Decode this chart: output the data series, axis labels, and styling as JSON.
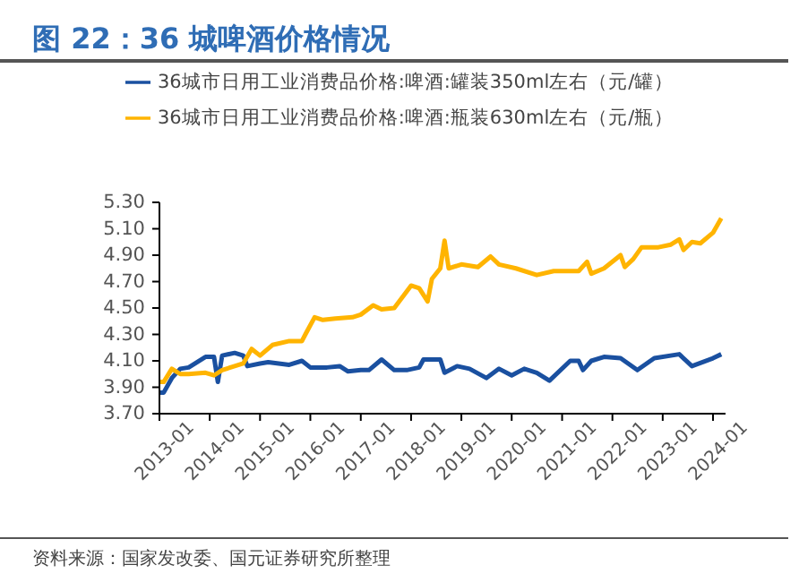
{
  "chart_data": {
    "type": "line",
    "title": "图 22：36 城啤酒价格情况",
    "annotations": [
      "资料来源：国家发改委、国元证券研究所整理"
    ],
    "legend": "top",
    "grid": false,
    "marker": "none",
    "line_style": "solid",
    "xlim": [
      "2013-01",
      "2024-04"
    ],
    "xticks": [
      "2013-01",
      "2014-01",
      "2015-01",
      "2016-01",
      "2017-01",
      "2018-01",
      "2019-01",
      "2020-01",
      "2021-01",
      "2022-01",
      "2023-01",
      "2024-01"
    ],
    "ylim": [
      3.7,
      5.3
    ],
    "yticks": [
      {
        "value": 3.7,
        "label": "3.70"
      },
      {
        "value": 3.9,
        "label": "3.90"
      },
      {
        "value": 4.1,
        "label": "4.10"
      },
      {
        "value": 4.3,
        "label": "4.30"
      },
      {
        "value": 4.5,
        "label": "4.50"
      },
      {
        "value": 4.7,
        "label": "4.70"
      },
      {
        "value": 4.9,
        "label": "4.90"
      },
      {
        "value": 5.1,
        "label": "5.10"
      },
      {
        "value": 5.3,
        "label": "5.30"
      }
    ],
    "series": [
      {
        "name": "36城市日用工业消费品价格:啤酒:罐装350ml左右（元/罐）",
        "color": "#1a50a0",
        "x": [
          "2013-01",
          "2013-02",
          "2013-04",
          "2013-06",
          "2013-08",
          "2013-12",
          "2014-02",
          "2014-03",
          "2014-04",
          "2014-07",
          "2014-09",
          "2014-10",
          "2015-01",
          "2015-03",
          "2015-08",
          "2015-11",
          "2016-01",
          "2016-05",
          "2016-08",
          "2016-10",
          "2017-01",
          "2017-03",
          "2017-06",
          "2017-09",
          "2017-12",
          "2018-03",
          "2018-04",
          "2018-08",
          "2018-09",
          "2018-12",
          "2019-03",
          "2019-07",
          "2019-10",
          "2020-01",
          "2020-04",
          "2020-07",
          "2020-10",
          "2021-03",
          "2021-05",
          "2021-06",
          "2021-08",
          "2021-11",
          "2022-03",
          "2022-07",
          "2022-11",
          "2023-05",
          "2023-08",
          "2024-01",
          "2024-03"
        ],
        "values": [
          3.86,
          3.86,
          3.97,
          4.04,
          4.05,
          4.13,
          4.13,
          3.94,
          4.14,
          4.16,
          4.14,
          4.06,
          4.08,
          4.09,
          4.07,
          4.1,
          4.05,
          4.05,
          4.06,
          4.02,
          4.03,
          4.03,
          4.11,
          4.03,
          4.03,
          4.05,
          4.11,
          4.11,
          4.01,
          4.06,
          4.04,
          3.97,
          4.04,
          3.99,
          4.04,
          4.01,
          3.95,
          4.1,
          4.1,
          4.03,
          4.1,
          4.13,
          4.12,
          4.03,
          4.12,
          4.15,
          4.06,
          4.12,
          4.15
        ]
      },
      {
        "name": "36城市日用工业消费品价格:啤酒:瓶装630ml左右（元/瓶）",
        "color": "#ffb400",
        "x": [
          "2013-01",
          "2013-02",
          "2013-04",
          "2013-06",
          "2013-08",
          "2013-12",
          "2014-02",
          "2014-04",
          "2014-07",
          "2014-09",
          "2014-11",
          "2015-01",
          "2015-04",
          "2015-08",
          "2015-11",
          "2015-12",
          "2016-02",
          "2016-04",
          "2016-07",
          "2016-11",
          "2017-01",
          "2017-04",
          "2017-06",
          "2017-09",
          "2018-01",
          "2018-03",
          "2018-05",
          "2018-06",
          "2018-08",
          "2018-09",
          "2018-10",
          "2019-01",
          "2019-05",
          "2019-08",
          "2019-10",
          "2020-02",
          "2020-07",
          "2020-11",
          "2021-05",
          "2021-07",
          "2021-08",
          "2021-11",
          "2022-03",
          "2022-04",
          "2022-06",
          "2022-08",
          "2022-12",
          "2023-03",
          "2023-05",
          "2023-06",
          "2023-08",
          "2023-10",
          "2024-01",
          "2024-03"
        ],
        "values": [
          3.94,
          3.94,
          4.04,
          4.0,
          4.0,
          4.01,
          3.99,
          4.03,
          4.06,
          4.08,
          4.19,
          4.14,
          4.22,
          4.25,
          4.25,
          4.31,
          4.43,
          4.41,
          4.42,
          4.43,
          4.45,
          4.52,
          4.49,
          4.5,
          4.67,
          4.65,
          4.55,
          4.72,
          4.8,
          5.01,
          4.8,
          4.83,
          4.81,
          4.89,
          4.83,
          4.8,
          4.75,
          4.78,
          4.78,
          4.85,
          4.76,
          4.8,
          4.9,
          4.81,
          4.87,
          4.96,
          4.96,
          4.98,
          5.02,
          4.94,
          5.0,
          4.99,
          5.07,
          5.18
        ]
      }
    ]
  }
}
